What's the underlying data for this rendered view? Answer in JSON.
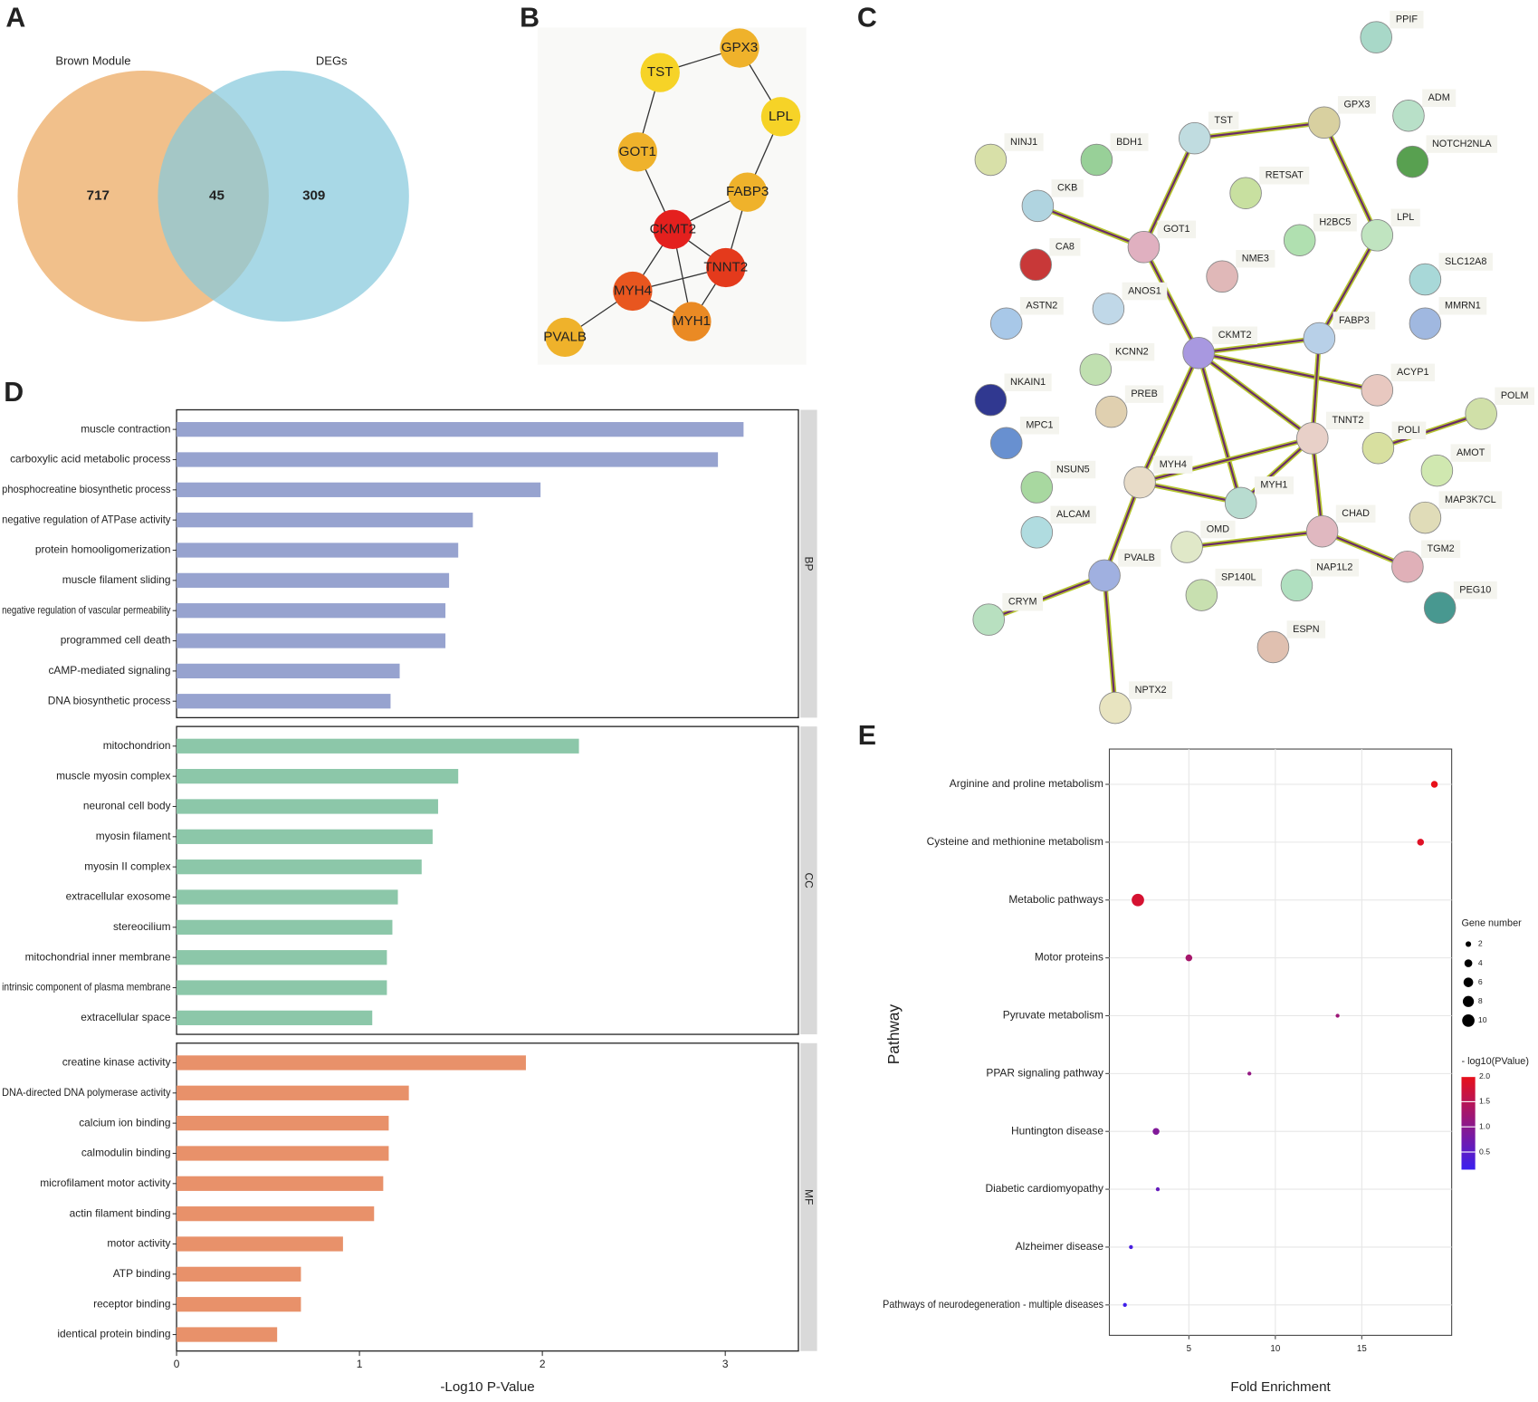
{
  "chart_data": [
    {
      "type": "venn",
      "panel": "A",
      "sets": [
        {
          "name": "Brown Module",
          "color": "#eeb577"
        },
        {
          "name": "DEGs",
          "color": "#86c9dc"
        }
      ],
      "values": [
        717,
        45,
        309
      ]
    },
    {
      "type": "network",
      "panel": "B",
      "nodes": [
        {
          "label": "TST",
          "color": "#f6d327"
        },
        {
          "label": "GPX3",
          "color": "#efb22b"
        },
        {
          "label": "LPL",
          "color": "#f6d327"
        },
        {
          "label": "GOT1",
          "color": "#efb22b"
        },
        {
          "label": "FABP3",
          "color": "#efb22b"
        },
        {
          "label": "CKMT2",
          "color": "#e4201e"
        },
        {
          "label": "TNNT2",
          "color": "#e43a1c"
        },
        {
          "label": "MYH4",
          "color": "#e8561f"
        },
        {
          "label": "MYH1",
          "color": "#ea8a24"
        },
        {
          "label": "PVALB",
          "color": "#efb22b"
        }
      ],
      "edges": [
        [
          "TST",
          "GPX3"
        ],
        [
          "GPX3",
          "LPL"
        ],
        [
          "TST",
          "GOT1"
        ],
        [
          "LPL",
          "FABP3"
        ],
        [
          "GOT1",
          "CKMT2"
        ],
        [
          "FABP3",
          "CKMT2"
        ],
        [
          "FABP3",
          "TNNT2"
        ],
        [
          "CKMT2",
          "TNNT2"
        ],
        [
          "CKMT2",
          "MYH4"
        ],
        [
          "CKMT2",
          "MYH1"
        ],
        [
          "TNNT2",
          "MYH4"
        ],
        [
          "TNNT2",
          "MYH1"
        ],
        [
          "MYH4",
          "MYH1"
        ],
        [
          "MYH4",
          "PVALB"
        ]
      ]
    },
    {
      "type": "network",
      "panel": "C",
      "nodes": [
        {
          "label": "PPIF",
          "color": "#a8d8c8"
        },
        {
          "label": "GPX3",
          "color": "#d8d0a0"
        },
        {
          "label": "ADM",
          "color": "#b8e0c8"
        },
        {
          "label": "TST",
          "color": "#c0dce0"
        },
        {
          "label": "NOTCH2NLA",
          "color": "#58a050"
        },
        {
          "label": "NINJ1",
          "color": "#d8e0a8"
        },
        {
          "label": "BDH1",
          "color": "#98d098"
        },
        {
          "label": "RETSAT",
          "color": "#c8e0a0"
        },
        {
          "label": "CKB",
          "color": "#b0d4e0"
        },
        {
          "label": "H2BC5",
          "color": "#b0e0b0"
        },
        {
          "label": "LPL",
          "color": "#c0e4c0"
        },
        {
          "label": "GOT1",
          "color": "#e0b0c0"
        },
        {
          "label": "CA8",
          "color": "#c83838"
        },
        {
          "label": "NME3",
          "color": "#e0b8b8"
        },
        {
          "label": "SLC12A8",
          "color": "#a8d8d8"
        },
        {
          "label": "ANOS1",
          "color": "#c0d8e8"
        },
        {
          "label": "ASTN2",
          "color": "#a8c8e8"
        },
        {
          "label": "MMRN1",
          "color": "#a0b8e0"
        },
        {
          "label": "FABP3",
          "color": "#b8d0e8"
        },
        {
          "label": "CKMT2",
          "color": "#a898e0"
        },
        {
          "label": "KCNN2",
          "color": "#c0e0b0"
        },
        {
          "label": "ACYP1",
          "color": "#e8c8c0"
        },
        {
          "label": "NKAIN1",
          "color": "#303890"
        },
        {
          "label": "PREB",
          "color": "#e0d0b0"
        },
        {
          "label": "POLM",
          "color": "#d0e0a8"
        },
        {
          "label": "TNNT2",
          "color": "#e8d0c8"
        },
        {
          "label": "MPC1",
          "color": "#6890d0"
        },
        {
          "label": "POLI",
          "color": "#d8e0a0"
        },
        {
          "label": "AMOT",
          "color": "#d0e8b0"
        },
        {
          "label": "MYH4",
          "color": "#e8dcc8"
        },
        {
          "label": "NSUN5",
          "color": "#a8d8a0"
        },
        {
          "label": "MYH1",
          "color": "#b8dcd0"
        },
        {
          "label": "MAP3K7CL",
          "color": "#e0dcb8"
        },
        {
          "label": "ALCAM",
          "color": "#b0dce0"
        },
        {
          "label": "OMD",
          "color": "#e0e8c8"
        },
        {
          "label": "CHAD",
          "color": "#e0b8c0"
        },
        {
          "label": "TGM2",
          "color": "#e0b0b8"
        },
        {
          "label": "PVALB",
          "color": "#a0b0e0"
        },
        {
          "label": "NAP1L2",
          "color": "#b0e0c0"
        },
        {
          "label": "SP140L",
          "color": "#c8e0b0"
        },
        {
          "label": "PEG10",
          "color": "#489890"
        },
        {
          "label": "CRYM",
          "color": "#b8e0c0"
        },
        {
          "label": "ESPN",
          "color": "#e0c0b0"
        },
        {
          "label": "NPTX2",
          "color": "#e8e4c0"
        }
      ],
      "edges": [
        [
          "TST",
          "GPX3"
        ],
        [
          "GPX3",
          "LPL"
        ],
        [
          "LPL",
          "FABP3"
        ],
        [
          "TST",
          "GOT1"
        ],
        [
          "CKB",
          "GOT1"
        ],
        [
          "GOT1",
          "CKMT2"
        ],
        [
          "CKMT2",
          "FABP3"
        ],
        [
          "CKMT2",
          "ACYP1"
        ],
        [
          "CKMT2",
          "TNNT2"
        ],
        [
          "CKMT2",
          "MYH4"
        ],
        [
          "CKMT2",
          "MYH1"
        ],
        [
          "TNNT2",
          "FABP3"
        ],
        [
          "TNNT2",
          "MYH4"
        ],
        [
          "TNNT2",
          "MYH1"
        ],
        [
          "TNNT2",
          "CHAD"
        ],
        [
          "MYH4",
          "MYH1"
        ],
        [
          "MYH4",
          "PVALB"
        ],
        [
          "PVALB",
          "CRYM"
        ],
        [
          "PVALB",
          "NPTX2"
        ],
        [
          "POLI",
          "POLM"
        ],
        [
          "OMD",
          "CHAD"
        ],
        [
          "CHAD",
          "TGM2"
        ]
      ]
    },
    {
      "type": "bar",
      "panel": "D",
      "xlabel": "-Log10 P-Value",
      "xlim": [
        0,
        3.4
      ],
      "xticks": [
        0,
        1,
        2,
        3
      ],
      "facets": [
        {
          "name": "BP",
          "color": "#97a3cf",
          "categories": [
            "muscle contraction",
            "carboxylic acid metabolic process",
            "phosphocreatine biosynthetic process",
            "negative regulation of ATPase activity",
            "protein homooligomerization",
            "muscle filament sliding",
            "negative regulation of vascular permeability",
            "programmed cell death",
            "cAMP-mediated signaling",
            "DNA biosynthetic process"
          ],
          "values": [
            3.1,
            2.96,
            1.99,
            1.62,
            1.54,
            1.49,
            1.47,
            1.47,
            1.22,
            1.17
          ]
        },
        {
          "name": "CC",
          "color": "#8cc7a9",
          "categories": [
            "mitochondrion",
            "muscle myosin complex",
            "neuronal cell body",
            "myosin filament",
            "myosin II complex",
            "extracellular exosome",
            "stereocilium",
            "mitochondrial inner membrane",
            "intrinsic component of plasma membrane",
            "extracellular space"
          ],
          "values": [
            2.2,
            1.54,
            1.43,
            1.4,
            1.34,
            1.21,
            1.18,
            1.15,
            1.15,
            1.07
          ]
        },
        {
          "name": "MF",
          "color": "#e8916a",
          "categories": [
            "creatine kinase activity",
            "DNA-directed DNA polymerase activity",
            "calcium ion binding",
            "calmodulin binding",
            "microfilament motor activity",
            "actin filament binding",
            "motor activity",
            "ATP binding",
            "receptor binding",
            "identical protein binding"
          ],
          "values": [
            1.91,
            1.27,
            1.16,
            1.16,
            1.13,
            1.08,
            0.91,
            0.68,
            0.68,
            0.55
          ]
        }
      ]
    },
    {
      "type": "scatter",
      "panel": "E",
      "xlabel": "Fold Enrichment",
      "ylabel": "Pathway",
      "categories": [
        "Arginine and proline metabolism",
        "Cysteine and methionine metabolism",
        "Metabolic pathways",
        "Motor proteins",
        "Pyruvate metabolism",
        "PPAR signaling pathway",
        "Huntington disease",
        "Diabetic cardiomyopathy",
        "Alzheimer disease",
        "Pathways of neurodegeneration - multiple diseases"
      ],
      "x": [
        19.2,
        18.4,
        2.05,
        5.0,
        13.6,
        8.5,
        3.1,
        3.2,
        1.65,
        1.3
      ],
      "sizes": [
        3,
        3,
        10,
        3,
        1,
        1,
        3,
        1,
        1,
        1
      ],
      "color_values": [
        2.0,
        1.9,
        1.8,
        1.3,
        1.2,
        1.1,
        0.9,
        0.6,
        0.3,
        0.2
      ],
      "xlim": [
        0.4,
        20.2
      ],
      "xticks": [
        5,
        10,
        15
      ],
      "grid": true,
      "size_legend": {
        "title": "Gene number",
        "ticks": [
          2,
          4,
          6,
          8,
          10
        ]
      },
      "color_legend": {
        "title": "- log10(PValue)",
        "lim": [
          0.15,
          2.0
        ],
        "ticks": [
          0.5,
          {
            "value": 1,
            "label": "1.0"
          },
          1.5,
          {
            "value": 2,
            "label": "2.0"
          }
        ],
        "colors": [
          "#3a1ff0",
          "#e8101a"
        ]
      }
    }
  ]
}
